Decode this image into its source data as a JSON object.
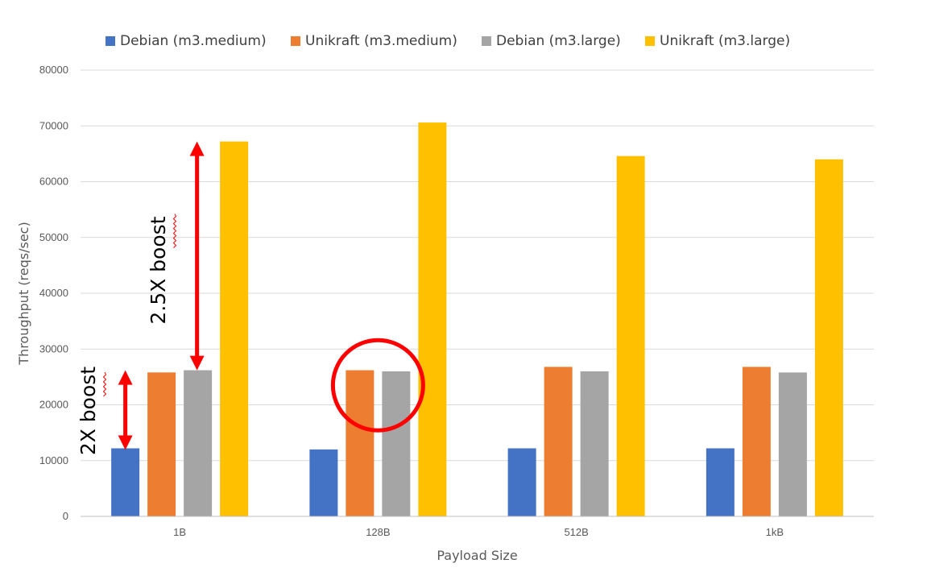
{
  "chart_data": {
    "type": "bar",
    "title": "",
    "xlabel": "Payload Size",
    "ylabel": "Throughput (reqs/sec)",
    "categories": [
      "1B",
      "128B",
      "512B",
      "1kB"
    ],
    "ylim": [
      0,
      80000
    ],
    "yticks": [
      0,
      10000,
      20000,
      30000,
      40000,
      50000,
      60000,
      70000,
      80000
    ],
    "grid": true,
    "legend_position": "top",
    "series": [
      {
        "name": "Debian (m3.medium)",
        "color": "#4472C4",
        "values": [
          12200,
          12000,
          12200,
          12200
        ]
      },
      {
        "name": "Unikraft (m3.medium)",
        "color": "#ED7D31",
        "values": [
          25800,
          26200,
          26800,
          26800
        ]
      },
      {
        "name": "Debian (m3.large)",
        "color": "#A5A5A5",
        "values": [
          26200,
          26000,
          26000,
          25800
        ]
      },
      {
        "name": "Unikraft (m3.large)",
        "color": "#FFC000",
        "values": [
          67200,
          70600,
          64600,
          64000
        ]
      }
    ],
    "annotations": [
      {
        "text": "2X boost",
        "color": "#FF0000",
        "category": "1B",
        "from_value": 12200,
        "to_value": 26200
      },
      {
        "text": "2.5X boost",
        "color": "#FF0000",
        "category": "1B",
        "from_value": 26200,
        "to_value": 67200
      },
      {
        "shape": "circle",
        "color": "#FF0000",
        "category": "128B",
        "around_value": 23500
      }
    ]
  }
}
